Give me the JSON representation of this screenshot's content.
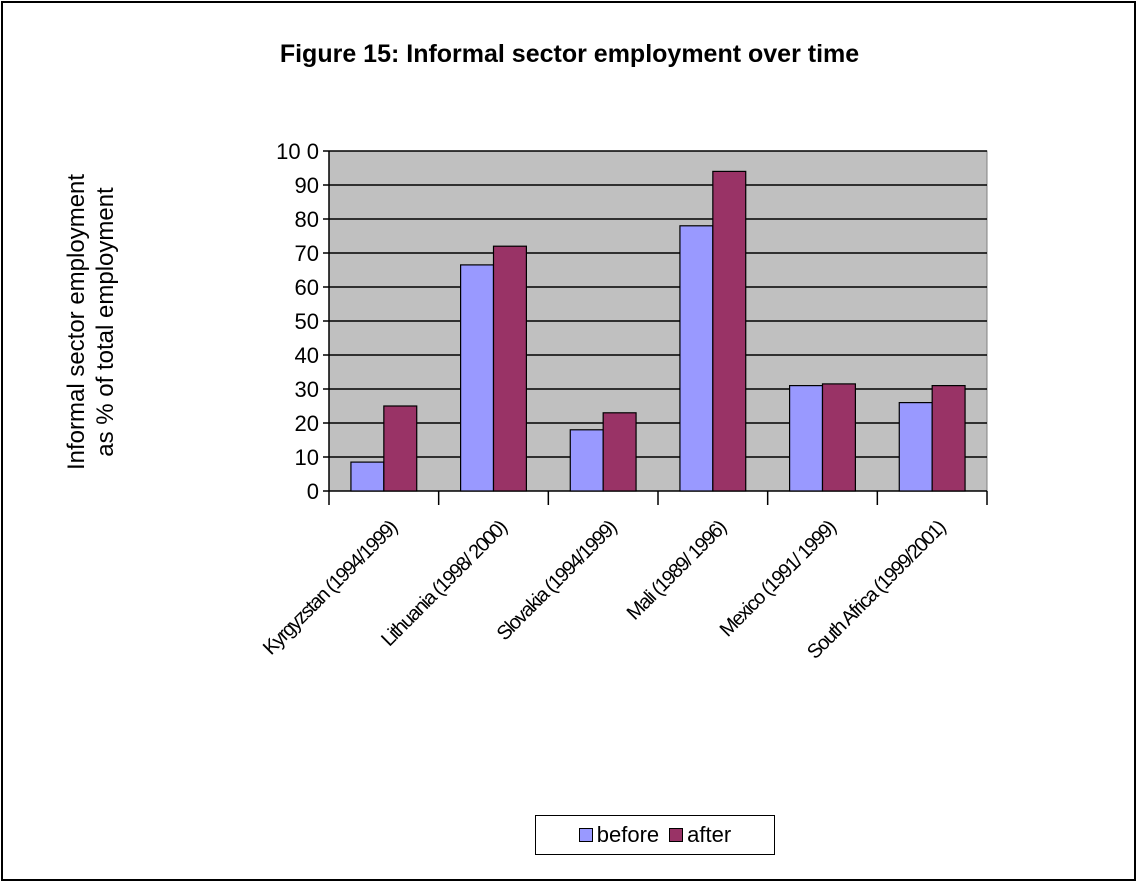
{
  "chart_data": {
    "type": "bar",
    "title": "Figure 15: Informal sector employment over time",
    "ylabel_lines": [
      "Informal sector employment",
      "as % of total employment"
    ],
    "ylim": [
      0,
      100
    ],
    "yticks": [
      0,
      10,
      20,
      30,
      40,
      50,
      60,
      70,
      80,
      90,
      100
    ],
    "ytick_labels": [
      "0",
      "10",
      "20",
      "30",
      "40",
      "50",
      "60",
      "70",
      "80",
      "90",
      "10 0"
    ],
    "categories": [
      "Kyrgyzstan (1994/1999)",
      "Lithuania (1998/ 2000)",
      "Slovakia (1994/1999)",
      "Mali (1989/ 1996)",
      "Mexico (1991/ 1999)",
      "South Africa (1999/2001)"
    ],
    "series": [
      {
        "name": "before",
        "color": "#9999ff",
        "values": [
          8.5,
          66.5,
          18,
          78,
          31,
          26
        ]
      },
      {
        "name": "after",
        "color": "#993366",
        "values": [
          25,
          72,
          23,
          94,
          31.5,
          31
        ]
      }
    ],
    "grid": true,
    "plot_background": "#c0c0c0",
    "legend_position": "bottom"
  }
}
